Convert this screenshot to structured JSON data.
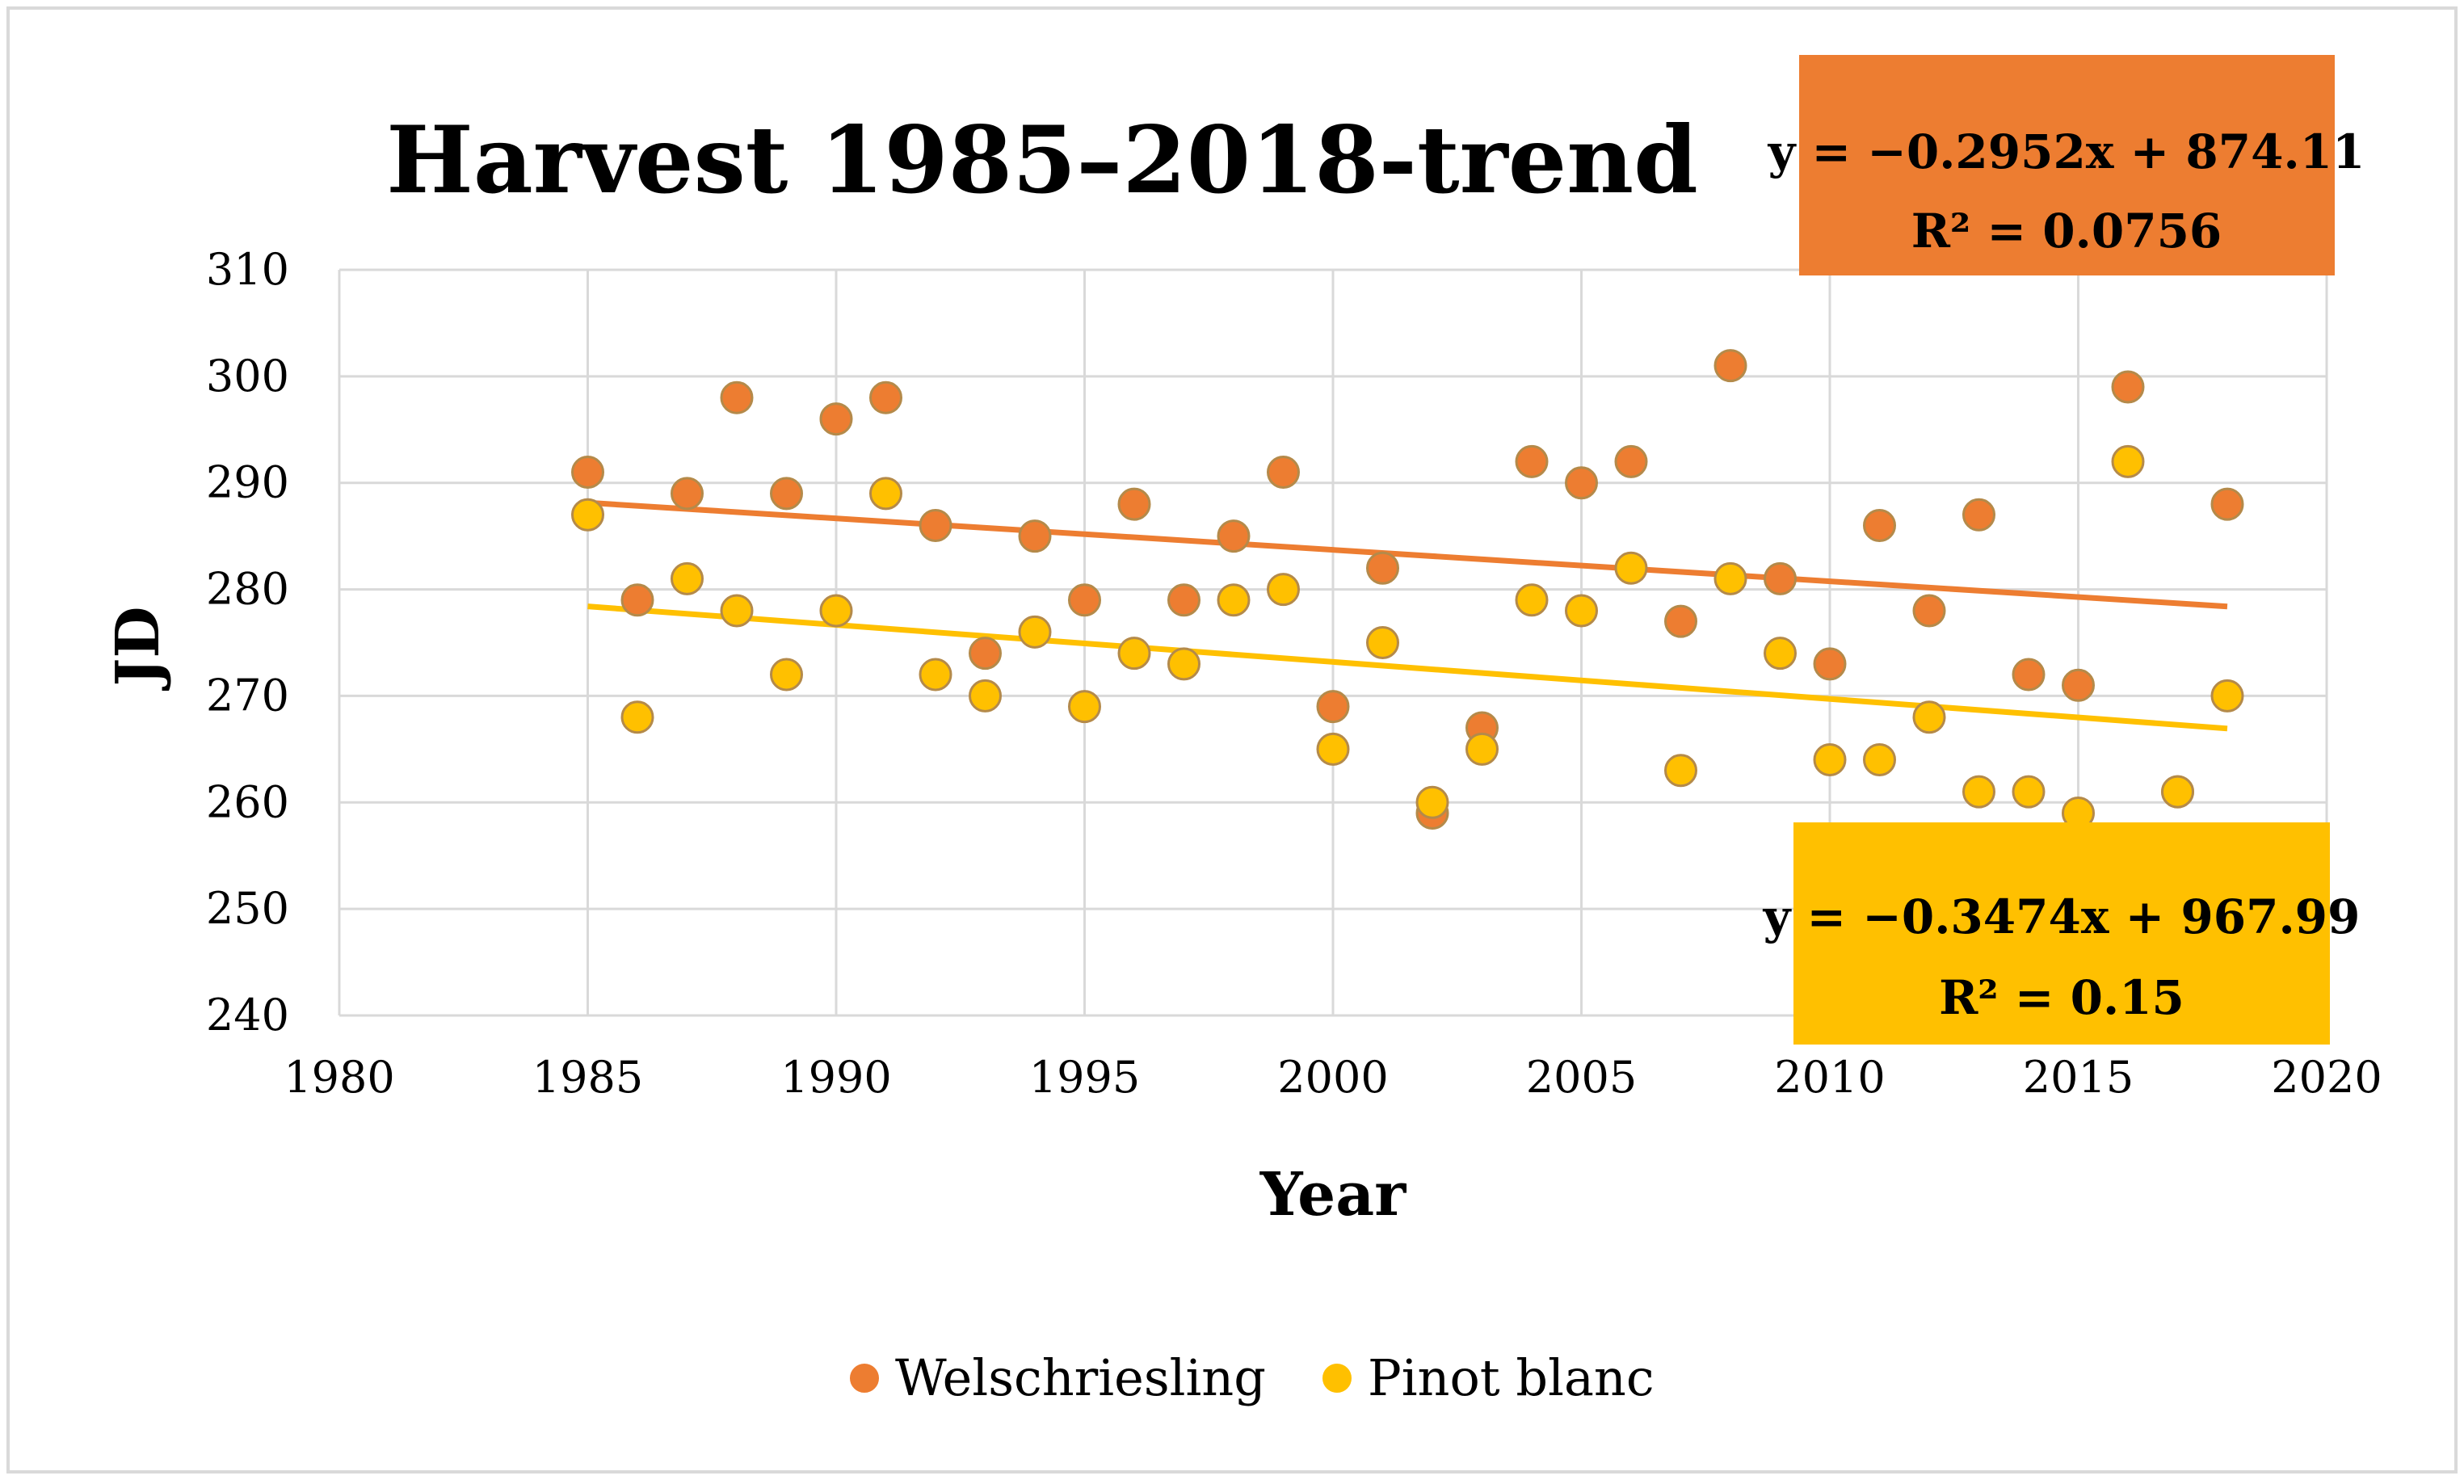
{
  "chart_data": {
    "type": "scatter",
    "title": "Harvest 1985–2018-trend",
    "xlabel": "Year",
    "ylabel": "JD",
    "xlim": [
      1980,
      2020
    ],
    "ylim": [
      240,
      310
    ],
    "xticks": [
      1980,
      1985,
      1990,
      1995,
      2000,
      2005,
      2010,
      2015,
      2020
    ],
    "yticks": [
      240,
      250,
      260,
      270,
      280,
      290,
      300,
      310
    ],
    "grid": true,
    "legend_position": "bottom-center",
    "series": [
      {
        "name": "Welschriesling",
        "color": "#ED7D31",
        "x": [
          1985,
          1986,
          1987,
          1988,
          1989,
          1990,
          1991,
          1992,
          1993,
          1994,
          1995,
          1996,
          1997,
          1998,
          1999,
          2000,
          2001,
          2002,
          2003,
          2004,
          2005,
          2006,
          2007,
          2008,
          2009,
          2010,
          2011,
          2012,
          2013,
          2014,
          2015,
          2016,
          2017,
          2018
        ],
        "y": [
          291,
          279,
          289,
          298,
          289,
          296,
          298,
          286,
          274,
          285,
          279,
          288,
          279,
          285,
          291,
          269,
          282,
          259,
          267,
          292,
          290,
          292,
          277,
          301,
          281,
          273,
          286,
          278,
          287,
          272,
          271,
          299,
          261,
          288
        ],
        "trendline": {
          "slope": -0.2952,
          "intercept": 874.11,
          "equation": "y = −0.2952x + 874.11",
          "r2": "R² = 0.0756",
          "label_color": "#ED7D31"
        }
      },
      {
        "name": "Pinot blanc",
        "color": "#FFC000",
        "x": [
          1985,
          1986,
          1987,
          1988,
          1989,
          1990,
          1991,
          1992,
          1993,
          1994,
          1995,
          1996,
          1997,
          1998,
          1999,
          2000,
          2001,
          2002,
          2003,
          2004,
          2005,
          2006,
          2007,
          2008,
          2009,
          2010,
          2011,
          2012,
          2013,
          2014,
          2015,
          2016,
          2017,
          2018
        ],
        "y": [
          287,
          268,
          281,
          278,
          272,
          278,
          289,
          272,
          270,
          276,
          269,
          274,
          273,
          279,
          280,
          265,
          275,
          260,
          265,
          279,
          278,
          282,
          263,
          281,
          274,
          264,
          264,
          268,
          261,
          261,
          259,
          292,
          261,
          270
        ],
        "trendline": {
          "slope": -0.3474,
          "intercept": 967.99,
          "equation": "y = −0.3474x + 967.99",
          "r2": "R² = 0.15",
          "label_color": "#FFC000"
        }
      }
    ]
  }
}
